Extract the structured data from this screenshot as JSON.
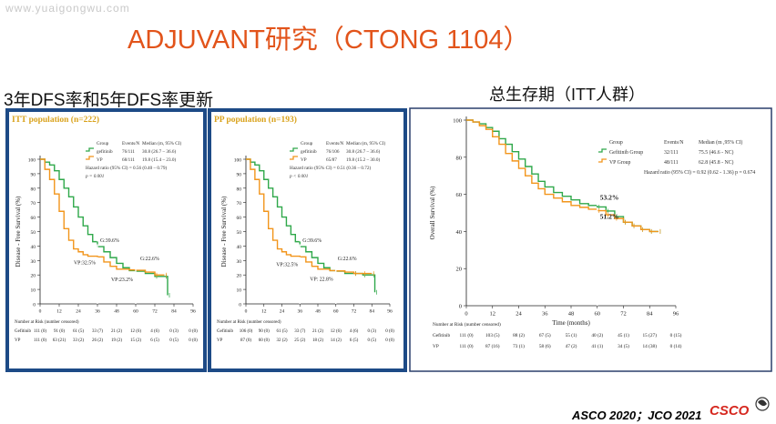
{
  "watermark": "www.yuaigongwu.com",
  "slide_title": "ADJUVANT研究（CTONG 1104）",
  "dfs_heading": "3年DFS率和5年DFS率更新",
  "os_heading": "总生存期（ITT人群）",
  "footer": {
    "citation": "ASCO 2020；JCO 2021",
    "logo": "CSCO"
  },
  "colors": {
    "gefitinib": "#2fa84a",
    "vp": "#f2951b",
    "dfs_panel_bg": "#1d4a86",
    "plot_bg": "#ffffff",
    "os_panel_bg": "#ffffff"
  },
  "chart_data": [
    {
      "type": "line",
      "title": "ITT population (n=222)",
      "ylabel": "Disease - Free Survival (%)",
      "xlabel": "",
      "xlim": [
        0,
        96
      ],
      "ylim": [
        0,
        100
      ],
      "x_ticks": [
        "0",
        "12",
        "24",
        "36",
        "48",
        "60",
        "72",
        "84",
        "96"
      ],
      "y_ticks": [
        "0",
        "10",
        "20",
        "30",
        "40",
        "50",
        "60",
        "70",
        "80",
        "90",
        "100"
      ],
      "legend": {
        "headers": [
          "Group",
          "Events/N",
          "Median (m, 95% CI)"
        ],
        "rows": [
          [
            "gefitinib",
            "76/111",
            "30.8 (26.7 – 36.6)"
          ],
          [
            "VP",
            "68/111",
            "19.8 (15.4 – 23.0)"
          ]
        ],
        "notes": [
          "Hazard ratio (95% CI) = 0.56 (0.40 – 0.79)",
          "p = 0.001"
        ]
      },
      "annotations": [
        {
          "text": "G:39.6%",
          "x": 36,
          "y": 39.6,
          "series": "gefitinib"
        },
        {
          "text": "VP:32.5%",
          "x": 36,
          "y": 32.5,
          "series": "VP"
        },
        {
          "text": "G:22.6%",
          "x": 60,
          "y": 22.6,
          "series": "gefitinib"
        },
        {
          "text": "VP:23.2%",
          "x": 60,
          "y": 23.2,
          "series": "VP"
        }
      ],
      "series": [
        {
          "name": "gefitinib",
          "x": [
            0,
            3,
            6,
            9,
            12,
            15,
            18,
            21,
            24,
            27,
            30,
            33,
            36,
            40,
            44,
            48,
            52,
            56,
            60,
            66,
            72,
            78,
            80
          ],
          "y": [
            100,
            98,
            96,
            92,
            86,
            80,
            74,
            67,
            60,
            54,
            48,
            43,
            39.6,
            36,
            32,
            28,
            25,
            23,
            22.6,
            21,
            19,
            19,
            6
          ]
        },
        {
          "name": "VP",
          "x": [
            0,
            3,
            6,
            9,
            12,
            15,
            18,
            21,
            24,
            27,
            30,
            33,
            36,
            40,
            44,
            48,
            52,
            56,
            60,
            66,
            72,
            78
          ],
          "y": [
            100,
            93,
            86,
            76,
            64,
            52,
            44,
            38,
            36,
            34,
            33,
            33,
            32.5,
            29,
            26,
            24,
            24,
            23.5,
            23.2,
            22,
            20,
            20
          ]
        }
      ],
      "risk_table": {
        "label": "Number at Risk (number censored)",
        "rows": [
          {
            "group": "Gefitinib",
            "values": [
              "111 (0)",
              "91 (0)",
              "61 (5)",
              "33 (7)",
              "21 (2)",
              "12 (6)",
              "4 (6)",
              "0 (3)",
              "0 (0)"
            ]
          },
          {
            "group": "VP",
            "values": [
              "111 (0)",
              "63 (21)",
              "33 (2)",
              "26 (2)",
              "19 (2)",
              "15 (2)",
              "6 (5)",
              "0 (5)",
              "0 (0)"
            ]
          }
        ]
      }
    },
    {
      "type": "line",
      "title": "PP population (n=193)",
      "ylabel": "Disease - Free Survival (%)",
      "xlabel": "",
      "xlim": [
        0,
        96
      ],
      "ylim": [
        0,
        100
      ],
      "x_ticks": [
        "0",
        "12",
        "24",
        "36",
        "48",
        "60",
        "72",
        "84",
        "96"
      ],
      "y_ticks": [
        "0",
        "10",
        "20",
        "30",
        "40",
        "50",
        "60",
        "70",
        "80",
        "90",
        "100"
      ],
      "legend": {
        "headers": [
          "Group",
          "Events/N",
          "Median (m, 95% CI)"
        ],
        "rows": [
          [
            "gefitinib",
            "76/106",
            "30.8 (26.7 – 36.6)"
          ],
          [
            "VP",
            "65/87",
            "19.8 (15.2 – 30.0)"
          ]
        ],
        "notes": [
          "Hazard ratio (95% CI) = 0.51 (0.36 – 0.72)",
          "p < 0.001"
        ]
      },
      "annotations": [
        {
          "text": "G:39.6%",
          "x": 36,
          "y": 39.6,
          "series": "gefitinib"
        },
        {
          "text": "VP:32.5%",
          "x": 36,
          "y": 32.5,
          "series": "VP"
        },
        {
          "text": "G:22.6%",
          "x": 60,
          "y": 22.6,
          "series": "gefitinib"
        },
        {
          "text": "VP: 22.8%",
          "x": 60,
          "y": 22.8,
          "series": "VP"
        }
      ],
      "series": [
        {
          "name": "gefitinib",
          "x": [
            0,
            3,
            6,
            9,
            12,
            15,
            18,
            21,
            24,
            27,
            30,
            33,
            36,
            40,
            44,
            48,
            52,
            56,
            60,
            66,
            72,
            78,
            84,
            86
          ],
          "y": [
            100,
            98,
            96,
            92,
            86,
            80,
            74,
            67,
            60,
            54,
            48,
            43,
            39.6,
            36,
            32,
            28,
            25,
            23,
            22.6,
            21,
            21,
            20,
            20,
            8
          ]
        },
        {
          "name": "VP",
          "x": [
            0,
            3,
            6,
            9,
            12,
            15,
            18,
            21,
            24,
            27,
            30,
            33,
            36,
            40,
            44,
            48,
            52,
            56,
            60,
            66,
            72,
            78,
            84
          ],
          "y": [
            100,
            93,
            86,
            76,
            64,
            52,
            44,
            38,
            36,
            34,
            33,
            33,
            32.5,
            29,
            26,
            24,
            24,
            23,
            22.8,
            22,
            21,
            21,
            21
          ]
        }
      ],
      "risk_table": {
        "label": "Number at Risk (number censored)",
        "rows": [
          {
            "group": "Gefitinib",
            "values": [
              "106 (0)",
              "90 (0)",
              "61 (5)",
              "33 (7)",
              "21 (2)",
              "12 (6)",
              "4 (6)",
              "0 (3)",
              "0 (0)"
            ]
          },
          {
            "group": "VP",
            "values": [
              "87 (0)",
              "60 (0)",
              "32 (2)",
              "25 (2)",
              "18 (2)",
              "14 (2)",
              "6 (5)",
              "0 (5)",
              "0 (0)"
            ]
          }
        ]
      }
    },
    {
      "type": "line",
      "title": "",
      "ylabel": "Overall Survival (%)",
      "xlabel": "Time (months)",
      "xlim": [
        0,
        96
      ],
      "ylim": [
        0,
        100
      ],
      "x_ticks": [
        "0",
        "12",
        "24",
        "36",
        "48",
        "60",
        "72",
        "84",
        "96"
      ],
      "y_ticks": [
        "0",
        "20",
        "40",
        "60",
        "80",
        "100"
      ],
      "legend": {
        "headers": [
          "Group",
          "Events/N",
          "Median (m ,95% CI)"
        ],
        "rows": [
          [
            "Gefitinib Group",
            "32/111",
            "75.5 (46.6 - NC)"
          ],
          [
            "VP Group",
            "48/111",
            "62.8 (45.8 - NC)"
          ]
        ],
        "notes": [
          "Hazard ratio (95% CI) = 0.92 (0.62 - 1.36)  p = 0.674"
        ]
      },
      "annotations": [
        {
          "text": "53.2%",
          "x": 60,
          "y": 53.2,
          "series": "Gefitinib Group"
        },
        {
          "text": "51.2%",
          "x": 60,
          "y": 51.2,
          "series": "VP Group"
        }
      ],
      "series": [
        {
          "name": "Gefitinib Group",
          "x": [
            0,
            3,
            6,
            9,
            12,
            15,
            18,
            21,
            24,
            27,
            30,
            33,
            36,
            40,
            44,
            48,
            52,
            56,
            60,
            64,
            68,
            72,
            76,
            80,
            84,
            88
          ],
          "y": [
            100,
            99,
            98,
            96,
            94,
            90,
            87,
            83,
            79,
            75,
            71,
            67,
            64,
            61,
            59,
            57,
            55,
            54,
            53.2,
            51,
            48,
            45,
            43,
            41,
            40,
            40
          ]
        },
        {
          "name": "VP Group",
          "x": [
            0,
            3,
            6,
            9,
            12,
            15,
            18,
            21,
            24,
            27,
            30,
            33,
            36,
            40,
            44,
            48,
            52,
            56,
            60,
            64,
            68,
            72,
            76,
            80,
            84,
            88
          ],
          "y": [
            100,
            99,
            97,
            95,
            91,
            87,
            82,
            78,
            74,
            70,
            66,
            63,
            60,
            58,
            56,
            54,
            53,
            52,
            51.2,
            49,
            47,
            45,
            43,
            41,
            40,
            40
          ]
        }
      ],
      "risk_table": {
        "label": "Number at Risk (number censored)",
        "rows": [
          {
            "group": "Gefitinib",
            "values": [
              "111 (0)",
              "103 (5)",
              "88 (2)",
              "67 (5)",
              "55 (1)",
              "40 (2)",
              "45 (1)",
              "15 (27)",
              "0 (15)"
            ]
          },
          {
            "group": "VP",
            "values": [
              "111 (0)",
              "87 (16)",
              "73 (1)",
              "58 (6)",
              "47 (2)",
              "41 (1)",
              "34 (5)",
              "14 (38)",
              "0 (14)"
            ]
          }
        ]
      }
    }
  ]
}
